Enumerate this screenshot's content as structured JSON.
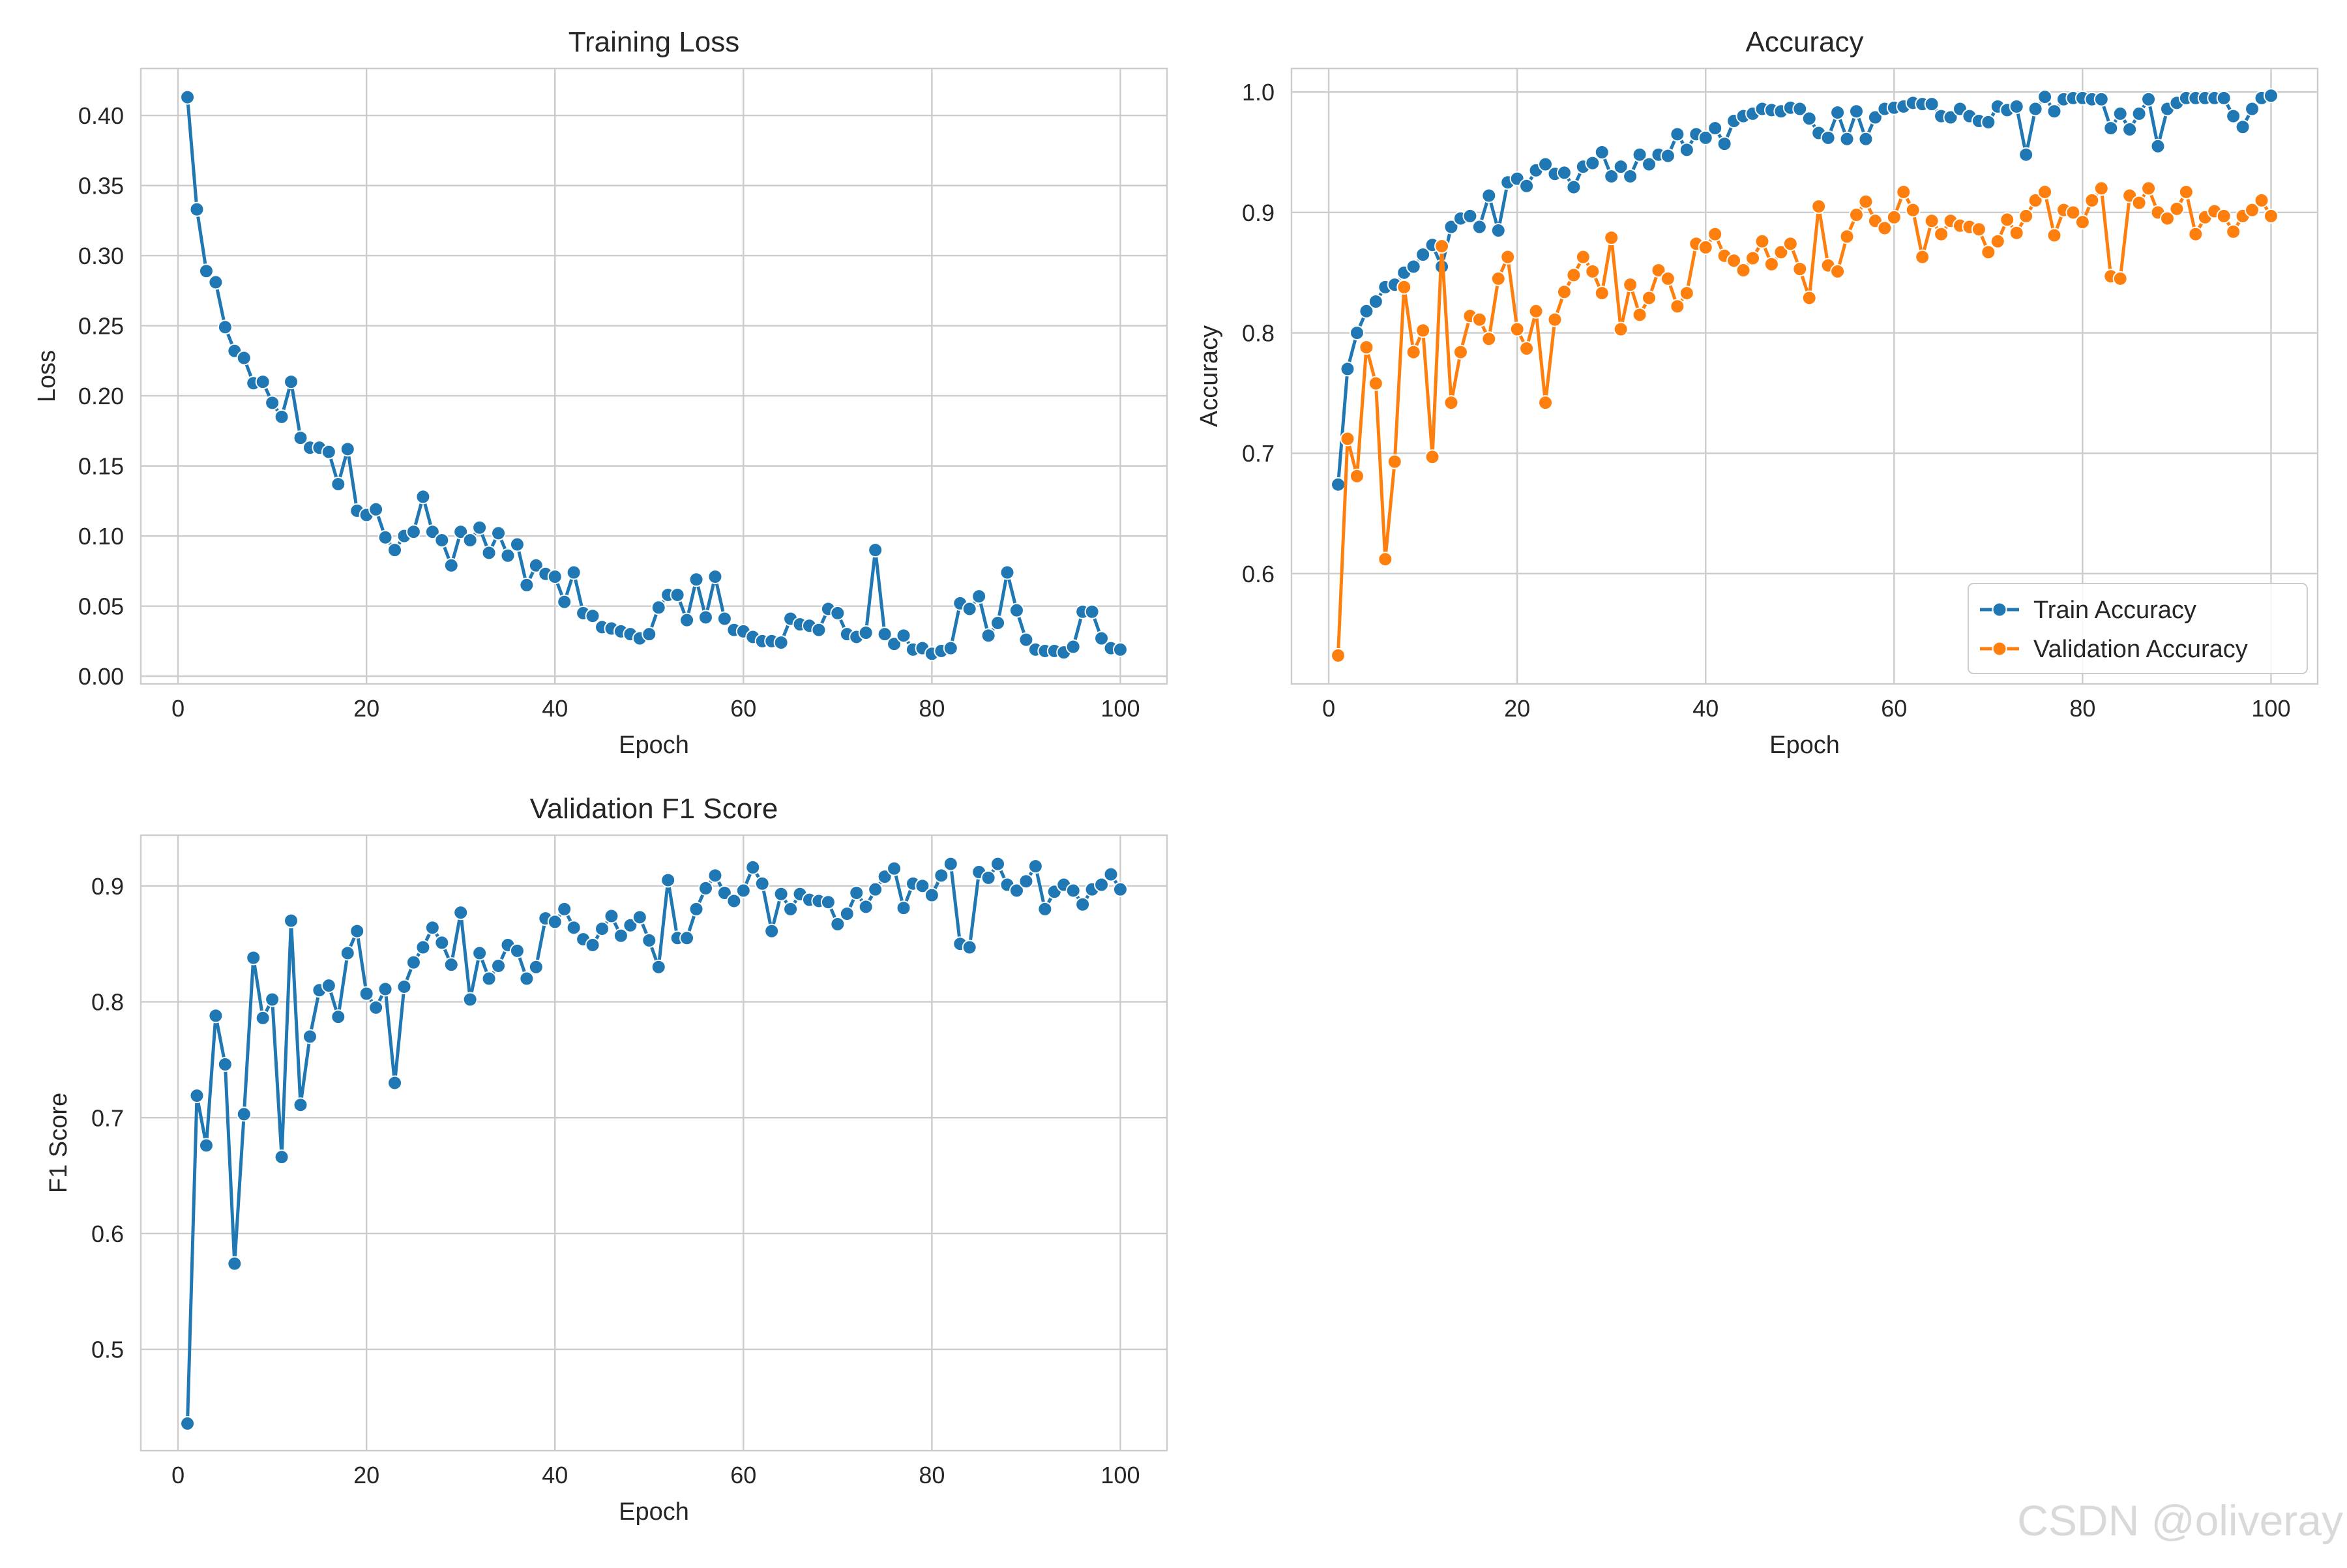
{
  "watermark": "CSDN @oliveray",
  "chart_data": [
    {
      "type": "line",
      "title": "Training Loss",
      "xlabel": "Epoch",
      "ylabel": "Loss",
      "xlim": [
        -3.95,
        104.95
      ],
      "ylim": [
        -0.0055,
        0.4335
      ],
      "xticks": [
        0,
        20,
        40,
        60,
        80,
        100
      ],
      "yticks": [
        0.0,
        0.05,
        0.1,
        0.15,
        0.2,
        0.25,
        0.3,
        0.35,
        0.4
      ],
      "ytick_decimals": 2,
      "grid": true,
      "series": [
        {
          "color": "#1f77b4",
          "x": [
            1,
            2,
            3,
            4,
            5,
            6,
            7,
            8,
            9,
            10,
            11,
            12,
            13,
            14,
            15,
            16,
            17,
            18,
            19,
            20,
            21,
            22,
            23,
            24,
            25,
            26,
            27,
            28,
            29,
            30,
            31,
            32,
            33,
            34,
            35,
            36,
            37,
            38,
            39,
            40,
            41,
            42,
            43,
            44,
            45,
            46,
            47,
            48,
            49,
            50,
            51,
            52,
            53,
            54,
            55,
            56,
            57,
            58,
            59,
            60,
            61,
            62,
            63,
            64,
            65,
            66,
            67,
            68,
            69,
            70,
            71,
            72,
            73,
            74,
            75,
            76,
            77,
            78,
            79,
            80,
            81,
            82,
            83,
            84,
            85,
            86,
            87,
            88,
            89,
            90,
            91,
            92,
            93,
            94,
            95,
            96,
            97,
            98,
            99,
            100
          ],
          "y": [
            0.413,
            0.333,
            0.289,
            0.281,
            0.249,
            0.232,
            0.227,
            0.209,
            0.21,
            0.195,
            0.185,
            0.21,
            0.17,
            0.163,
            0.163,
            0.16,
            0.137,
            0.162,
            0.118,
            0.115,
            0.119,
            0.099,
            0.09,
            0.1,
            0.103,
            0.128,
            0.103,
            0.097,
            0.079,
            0.103,
            0.097,
            0.106,
            0.088,
            0.102,
            0.086,
            0.094,
            0.065,
            0.079,
            0.073,
            0.071,
            0.053,
            0.074,
            0.045,
            0.043,
            0.035,
            0.034,
            0.032,
            0.03,
            0.027,
            0.03,
            0.049,
            0.058,
            0.058,
            0.04,
            0.069,
            0.042,
            0.071,
            0.041,
            0.033,
            0.032,
            0.028,
            0.025,
            0.025,
            0.024,
            0.041,
            0.037,
            0.036,
            0.033,
            0.048,
            0.045,
            0.03,
            0.028,
            0.031,
            0.09,
            0.03,
            0.023,
            0.029,
            0.019,
            0.02,
            0.016,
            0.018,
            0.02,
            0.052,
            0.048,
            0.057,
            0.029,
            0.038,
            0.074,
            0.047,
            0.026,
            0.019,
            0.018,
            0.018,
            0.017,
            0.021,
            0.046,
            0.046,
            0.027,
            0.02,
            0.019
          ]
        }
      ]
    },
    {
      "type": "line",
      "title": "Accuracy",
      "xlabel": "Epoch",
      "ylabel": "Accuracy",
      "xlim": [
        -3.95,
        104.95
      ],
      "ylim": [
        0.5084,
        1.0196
      ],
      "xticks": [
        0,
        20,
        40,
        60,
        80,
        100
      ],
      "yticks": [
        0.6,
        0.7,
        0.8,
        0.9,
        1.0
      ],
      "ytick_decimals": 1,
      "grid": true,
      "legend": {
        "placement": "lower-right",
        "entries": [
          "Train Accuracy",
          "Validation Accuracy"
        ]
      },
      "series": [
        {
          "name": "Train Accuracy",
          "color": "#1f77b4",
          "x": [
            1,
            2,
            3,
            4,
            5,
            6,
            7,
            8,
            9,
            10,
            11,
            12,
            13,
            14,
            15,
            16,
            17,
            18,
            19,
            20,
            21,
            22,
            23,
            24,
            25,
            26,
            27,
            28,
            29,
            30,
            31,
            32,
            33,
            34,
            35,
            36,
            37,
            38,
            39,
            40,
            41,
            42,
            43,
            44,
            45,
            46,
            47,
            48,
            49,
            50,
            51,
            52,
            53,
            54,
            55,
            56,
            57,
            58,
            59,
            60,
            61,
            62,
            63,
            64,
            65,
            66,
            67,
            68,
            69,
            70,
            71,
            72,
            73,
            74,
            75,
            76,
            77,
            78,
            79,
            80,
            81,
            82,
            83,
            84,
            85,
            86,
            87,
            88,
            89,
            90,
            91,
            92,
            93,
            94,
            95,
            96,
            97,
            98,
            99,
            100
          ],
          "y": [
            0.674,
            0.77,
            0.8,
            0.818,
            0.826,
            0.838,
            0.84,
            0.85,
            0.855,
            0.865,
            0.873,
            0.855,
            0.888,
            0.895,
            0.897,
            0.888,
            0.914,
            0.885,
            0.925,
            0.928,
            0.922,
            0.935,
            0.94,
            0.932,
            0.933,
            0.921,
            0.938,
            0.941,
            0.95,
            0.93,
            0.938,
            0.93,
            0.948,
            0.94,
            0.948,
            0.947,
            0.965,
            0.952,
            0.965,
            0.962,
            0.97,
            0.957,
            0.976,
            0.98,
            0.982,
            0.986,
            0.985,
            0.984,
            0.987,
            0.986,
            0.978,
            0.966,
            0.962,
            0.983,
            0.961,
            0.984,
            0.961,
            0.979,
            0.986,
            0.987,
            0.988,
            0.991,
            0.99,
            0.99,
            0.98,
            0.979,
            0.986,
            0.98,
            0.976,
            0.975,
            0.988,
            0.985,
            0.988,
            0.948,
            0.986,
            0.996,
            0.984,
            0.994,
            0.995,
            0.995,
            0.994,
            0.994,
            0.97,
            0.982,
            0.969,
            0.982,
            0.994,
            0.955,
            0.986,
            0.991,
            0.995,
            0.995,
            0.995,
            0.995,
            0.995,
            0.98,
            0.971,
            0.986,
            0.995,
            0.997
          ]
        },
        {
          "name": "Validation Accuracy",
          "color": "#ff7f0e",
          "x": [
            1,
            2,
            3,
            4,
            5,
            6,
            7,
            8,
            9,
            10,
            11,
            12,
            13,
            14,
            15,
            16,
            17,
            18,
            19,
            20,
            21,
            22,
            23,
            24,
            25,
            26,
            27,
            28,
            29,
            30,
            31,
            32,
            33,
            34,
            35,
            36,
            37,
            38,
            39,
            40,
            41,
            42,
            43,
            44,
            45,
            46,
            47,
            48,
            49,
            50,
            51,
            52,
            53,
            54,
            55,
            56,
            57,
            58,
            59,
            60,
            61,
            62,
            63,
            64,
            65,
            66,
            67,
            68,
            69,
            70,
            71,
            72,
            73,
            74,
            75,
            76,
            77,
            78,
            79,
            80,
            81,
            82,
            83,
            84,
            85,
            86,
            87,
            88,
            89,
            90,
            91,
            92,
            93,
            94,
            95,
            96,
            97,
            98,
            99,
            100
          ],
          "y": [
            0.532,
            0.712,
            0.681,
            0.788,
            0.758,
            0.612,
            0.693,
            0.838,
            0.784,
            0.802,
            0.697,
            0.872,
            0.742,
            0.784,
            0.814,
            0.811,
            0.795,
            0.845,
            0.863,
            0.803,
            0.787,
            0.818,
            0.742,
            0.811,
            0.834,
            0.848,
            0.863,
            0.851,
            0.833,
            0.879,
            0.803,
            0.84,
            0.815,
            0.829,
            0.852,
            0.845,
            0.822,
            0.833,
            0.874,
            0.871,
            0.882,
            0.864,
            0.86,
            0.852,
            0.862,
            0.876,
            0.857,
            0.867,
            0.874,
            0.853,
            0.829,
            0.905,
            0.856,
            0.851,
            0.88,
            0.898,
            0.909,
            0.893,
            0.887,
            0.896,
            0.917,
            0.902,
            0.863,
            0.893,
            0.882,
            0.893,
            0.889,
            0.888,
            0.886,
            0.867,
            0.876,
            0.894,
            0.883,
            0.897,
            0.91,
            0.917,
            0.881,
            0.902,
            0.9,
            0.892,
            0.91,
            0.92,
            0.847,
            0.845,
            0.914,
            0.908,
            0.92,
            0.9,
            0.895,
            0.903,
            0.917,
            0.882,
            0.896,
            0.901,
            0.897,
            0.884,
            0.897,
            0.902,
            0.91,
            0.897
          ]
        }
      ]
    },
    {
      "type": "line",
      "title": "Validation F1 Score",
      "xlabel": "Epoch",
      "ylabel": "F1 Score",
      "xlim": [
        -3.95,
        104.95
      ],
      "ylim": [
        0.4126,
        0.9438
      ],
      "xticks": [
        0,
        20,
        40,
        60,
        80,
        100
      ],
      "yticks": [
        0.5,
        0.6,
        0.7,
        0.8,
        0.9
      ],
      "ytick_decimals": 1,
      "grid": true,
      "series": [
        {
          "color": "#1f77b4",
          "x": [
            1,
            2,
            3,
            4,
            5,
            6,
            7,
            8,
            9,
            10,
            11,
            12,
            13,
            14,
            15,
            16,
            17,
            18,
            19,
            20,
            21,
            22,
            23,
            24,
            25,
            26,
            27,
            28,
            29,
            30,
            31,
            32,
            33,
            34,
            35,
            36,
            37,
            38,
            39,
            40,
            41,
            42,
            43,
            44,
            45,
            46,
            47,
            48,
            49,
            50,
            51,
            52,
            53,
            54,
            55,
            56,
            57,
            58,
            59,
            60,
            61,
            62,
            63,
            64,
            65,
            66,
            67,
            68,
            69,
            70,
            71,
            72,
            73,
            74,
            75,
            76,
            77,
            78,
            79,
            80,
            81,
            82,
            83,
            84,
            85,
            86,
            87,
            88,
            89,
            90,
            91,
            92,
            93,
            94,
            95,
            96,
            97,
            98,
            99,
            100
          ],
          "y": [
            0.436,
            0.719,
            0.676,
            0.788,
            0.746,
            0.574,
            0.703,
            0.838,
            0.786,
            0.802,
            0.666,
            0.87,
            0.711,
            0.77,
            0.81,
            0.814,
            0.787,
            0.842,
            0.861,
            0.807,
            0.795,
            0.811,
            0.73,
            0.813,
            0.834,
            0.847,
            0.864,
            0.851,
            0.832,
            0.877,
            0.802,
            0.842,
            0.82,
            0.831,
            0.849,
            0.844,
            0.82,
            0.83,
            0.872,
            0.869,
            0.88,
            0.864,
            0.854,
            0.849,
            0.863,
            0.874,
            0.857,
            0.866,
            0.873,
            0.853,
            0.83,
            0.905,
            0.855,
            0.855,
            0.88,
            0.898,
            0.909,
            0.894,
            0.887,
            0.896,
            0.916,
            0.902,
            0.861,
            0.893,
            0.88,
            0.893,
            0.888,
            0.887,
            0.886,
            0.867,
            0.876,
            0.894,
            0.882,
            0.897,
            0.908,
            0.915,
            0.881,
            0.902,
            0.9,
            0.892,
            0.909,
            0.919,
            0.85,
            0.847,
            0.912,
            0.907,
            0.919,
            0.901,
            0.896,
            0.904,
            0.917,
            0.88,
            0.895,
            0.901,
            0.896,
            0.884,
            0.897,
            0.901,
            0.91,
            0.897
          ]
        }
      ]
    }
  ]
}
